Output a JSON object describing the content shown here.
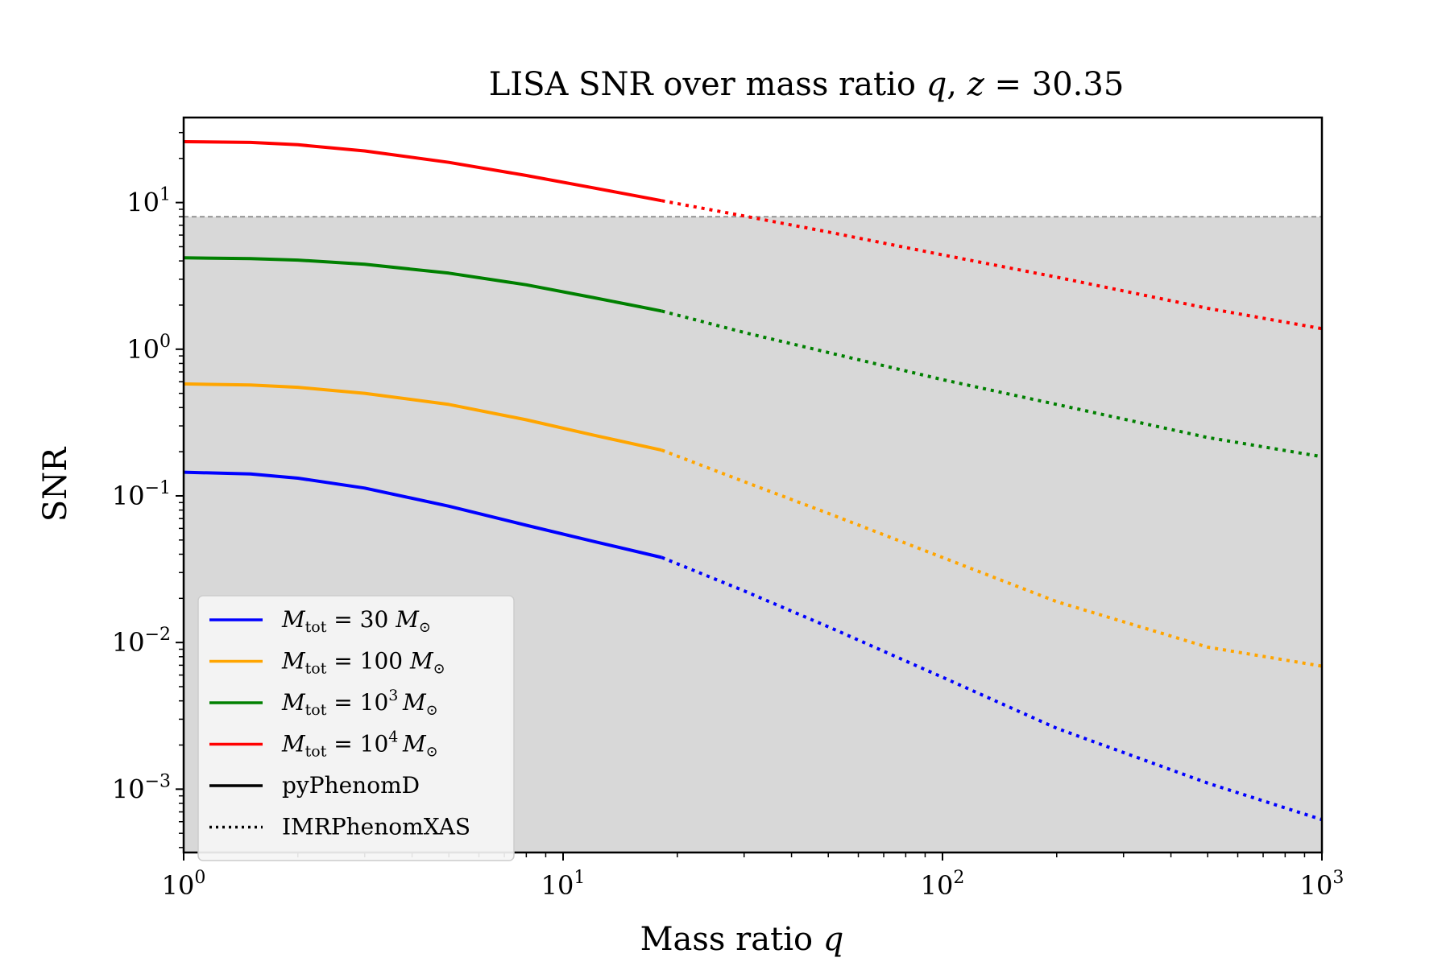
{
  "chart_data": {
    "type": "line",
    "title": "LISA SNR over mass ratio q, z = 30.35",
    "xlabel": "Mass ratio q",
    "ylabel": "SNR",
    "xscale": "log",
    "yscale": "log",
    "xlim": [
      1,
      1000
    ],
    "ylim": [
      0.00037,
      38
    ],
    "x_ticks": [
      {
        "base": "10",
        "exp": "0"
      },
      {
        "base": "10",
        "exp": "1"
      },
      {
        "base": "10",
        "exp": "2"
      },
      {
        "base": "10",
        "exp": "3"
      }
    ],
    "y_ticks": [
      {
        "value": 10,
        "base": "10",
        "exp": "1"
      },
      {
        "value": 1,
        "base": "10",
        "exp": "0"
      },
      {
        "value": 0.1,
        "base": "10",
        "exp": "−1"
      },
      {
        "value": 0.01,
        "base": "10",
        "exp": "−2"
      },
      {
        "value": 0.001,
        "base": "10",
        "exp": "−3"
      }
    ],
    "threshold": {
      "snr": 8,
      "shaded_below": true,
      "fill_color": "#d8d8d8",
      "line_color": "#888888"
    },
    "grid": false,
    "legend_position": "lower-left",
    "series": [
      {
        "name": "M_tot = 30 M_⊙",
        "label_main": "M",
        "label_sub": "tot",
        "label_rest": " = 30 ",
        "label_sup": "",
        "label_sun": "M",
        "color": "#0000ff",
        "pyPhenomD": {
          "x": [
            1,
            1.5,
            2,
            3,
            5,
            8,
            12,
            18.2
          ],
          "y": [
            0.145,
            0.141,
            0.132,
            0.113,
            0.085,
            0.063,
            0.049,
            0.038
          ]
        },
        "IMRPhenomXAS": {
          "x": [
            18.2,
            30,
            50,
            100,
            200,
            500,
            1000
          ],
          "y": [
            0.038,
            0.0225,
            0.0128,
            0.0058,
            0.0026,
            0.0011,
            0.00062
          ]
        }
      },
      {
        "name": "M_tot = 100 M_⊙",
        "label_main": "M",
        "label_sub": "tot",
        "label_rest": " = 100 ",
        "label_sup": "",
        "label_sun": "M",
        "color": "#ffa500",
        "pyPhenomD": {
          "x": [
            1,
            1.5,
            2,
            3,
            5,
            8,
            12,
            18.2
          ],
          "y": [
            0.58,
            0.57,
            0.55,
            0.5,
            0.42,
            0.33,
            0.26,
            0.205
          ]
        },
        "IMRPhenomXAS": {
          "x": [
            18.2,
            30,
            50,
            100,
            200,
            500,
            1000
          ],
          "y": [
            0.205,
            0.125,
            0.076,
            0.038,
            0.019,
            0.0093,
            0.0069
          ]
        }
      },
      {
        "name": "M_tot = 10^3 M_⊙",
        "label_main": "M",
        "label_sub": "tot",
        "label_rest": " = 10",
        "label_sup": "3",
        "label_sun": "M",
        "color": "#008000",
        "pyPhenomD": {
          "x": [
            1,
            1.5,
            2,
            3,
            5,
            8,
            12,
            18.2
          ],
          "y": [
            4.2,
            4.15,
            4.05,
            3.8,
            3.3,
            2.75,
            2.25,
            1.82
          ]
        },
        "IMRPhenomXAS": {
          "x": [
            18.2,
            30,
            50,
            100,
            200,
            500,
            1000
          ],
          "y": [
            1.82,
            1.3,
            0.95,
            0.62,
            0.42,
            0.25,
            0.185
          ]
        }
      },
      {
        "name": "M_tot = 10^4 M_⊙",
        "label_main": "M",
        "label_sub": "tot",
        "label_rest": " = 10",
        "label_sup": "4",
        "label_sun": "M",
        "color": "#ff0000",
        "pyPhenomD": {
          "x": [
            1,
            1.5,
            2,
            3,
            5,
            8,
            12,
            18.2
          ],
          "y": [
            26,
            25.7,
            24.8,
            22.5,
            18.8,
            15.3,
            12.6,
            10.3
          ]
        },
        "IMRPhenomXAS": {
          "x": [
            18.2,
            30,
            50,
            100,
            200,
            500,
            1000
          ],
          "y": [
            10.3,
            8.1,
            6.3,
            4.4,
            3.1,
            1.9,
            1.38
          ]
        }
      }
    ],
    "style_legend": [
      {
        "name": "pyPhenomD",
        "style": "solid"
      },
      {
        "name": "IMRPhenomXAS",
        "style": "dotted"
      }
    ]
  }
}
